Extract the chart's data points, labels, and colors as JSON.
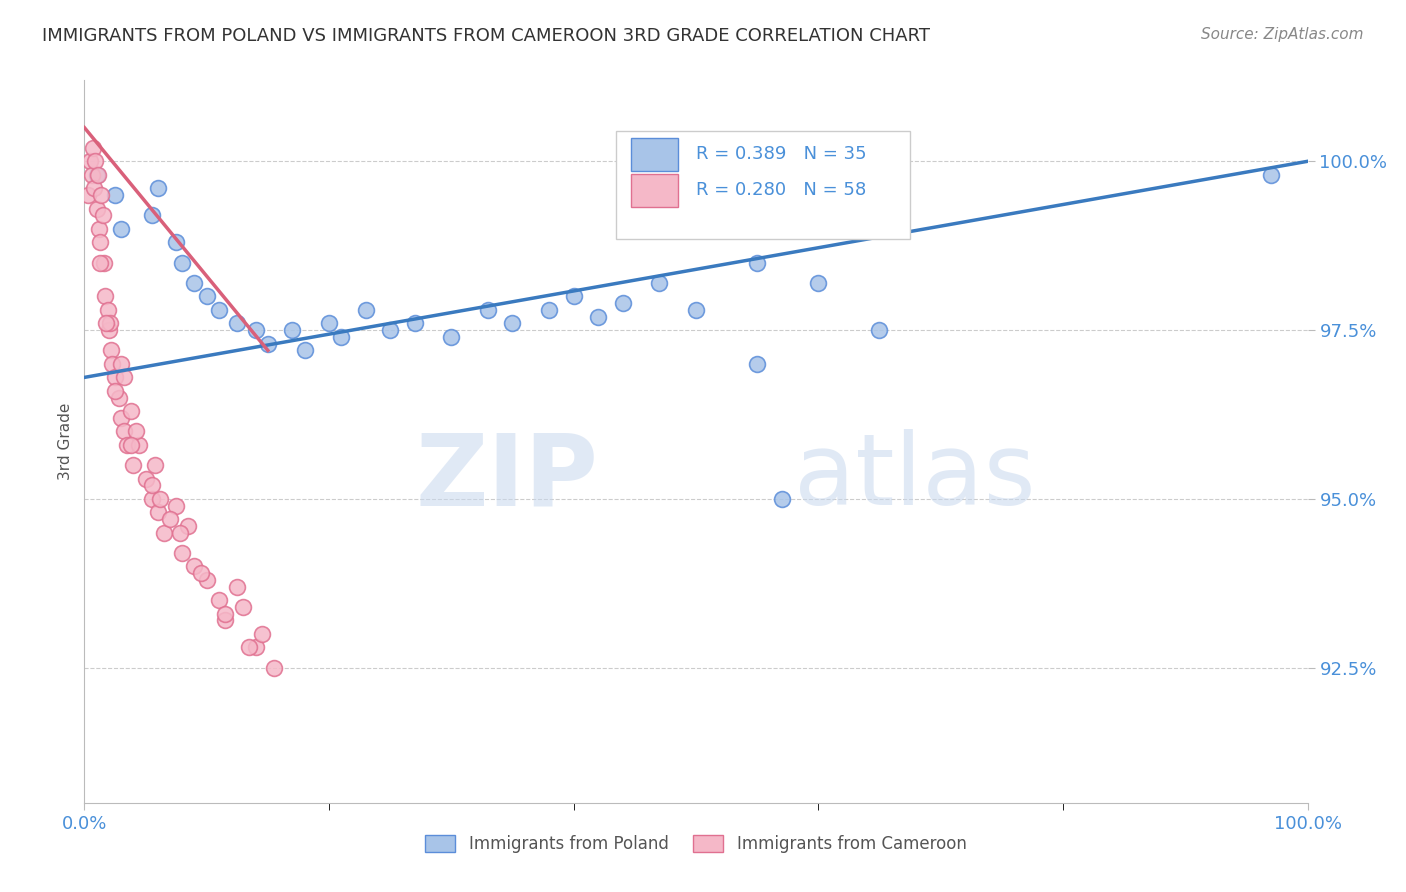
{
  "title": "IMMIGRANTS FROM POLAND VS IMMIGRANTS FROM CAMEROON 3RD GRADE CORRELATION CHART",
  "source": "Source: ZipAtlas.com",
  "ylabel": "3rd Grade",
  "y_tick_values": [
    92.5,
    95.0,
    97.5,
    100.0
  ],
  "xlim": [
    0.0,
    100.0
  ],
  "ylim": [
    90.5,
    101.2
  ],
  "legend_r_poland": "R = 0.389",
  "legend_n_poland": "N = 35",
  "legend_r_cameroon": "R = 0.280",
  "legend_n_cameroon": "N = 58",
  "color_poland_fill": "#a8c4e8",
  "color_poland_edge": "#5b8dd9",
  "color_cameroon_fill": "#f5b8c8",
  "color_cameroon_edge": "#e07090",
  "color_poland_line": "#3a7abf",
  "color_cameroon_line": "#d9607a",
  "color_axis_labels": "#4a90d9",
  "color_title": "#333333",
  "color_source": "#888888",
  "color_grid": "#cccccc",
  "watermark_zip": "ZIP",
  "watermark_atlas": "atlas",
  "poland_x": [
    1.0,
    2.5,
    3.0,
    5.5,
    6.0,
    7.5,
    8.0,
    9.0,
    10.0,
    11.0,
    12.5,
    14.0,
    15.0,
    17.0,
    18.0,
    20.0,
    21.0,
    23.0,
    25.0,
    27.0,
    30.0,
    33.0,
    35.0,
    38.0,
    40.0,
    42.0,
    44.0,
    47.0,
    50.0,
    55.0,
    60.0,
    65.0,
    97.0,
    57.0,
    55.0
  ],
  "poland_y": [
    99.8,
    99.5,
    99.0,
    99.2,
    99.6,
    98.8,
    98.5,
    98.2,
    98.0,
    97.8,
    97.6,
    97.5,
    97.3,
    97.5,
    97.2,
    97.6,
    97.4,
    97.8,
    97.5,
    97.6,
    97.4,
    97.8,
    97.6,
    97.8,
    98.0,
    97.7,
    97.9,
    98.2,
    97.8,
    98.5,
    98.2,
    97.5,
    99.8,
    95.0,
    97.0
  ],
  "cameroon_x": [
    0.3,
    0.5,
    0.6,
    0.7,
    0.8,
    0.9,
    1.0,
    1.1,
    1.2,
    1.3,
    1.4,
    1.5,
    1.6,
    1.7,
    1.9,
    2.0,
    2.1,
    2.2,
    2.3,
    2.5,
    2.8,
    3.0,
    3.2,
    3.5,
    3.8,
    4.0,
    4.5,
    5.0,
    5.5,
    6.0,
    6.5,
    7.5,
    8.0,
    8.5,
    9.0,
    10.0,
    11.0,
    11.5,
    12.5,
    13.0,
    14.0,
    14.5,
    15.5,
    3.0,
    3.2,
    4.2,
    5.8,
    6.2,
    7.8,
    1.3,
    1.8,
    2.5,
    3.8,
    5.5,
    7.0,
    9.5,
    11.5,
    13.5
  ],
  "cameroon_y": [
    99.5,
    100.0,
    99.8,
    100.2,
    99.6,
    100.0,
    99.3,
    99.8,
    99.0,
    98.8,
    99.5,
    99.2,
    98.5,
    98.0,
    97.8,
    97.5,
    97.6,
    97.2,
    97.0,
    96.8,
    96.5,
    96.2,
    96.0,
    95.8,
    96.3,
    95.5,
    95.8,
    95.3,
    95.0,
    94.8,
    94.5,
    94.9,
    94.2,
    94.6,
    94.0,
    93.8,
    93.5,
    93.2,
    93.7,
    93.4,
    92.8,
    93.0,
    92.5,
    97.0,
    96.8,
    96.0,
    95.5,
    95.0,
    94.5,
    98.5,
    97.6,
    96.6,
    95.8,
    95.2,
    94.7,
    93.9,
    93.3,
    92.8
  ],
  "poland_line_x0": 0.0,
  "poland_line_x1": 100.0,
  "poland_line_y0": 96.8,
  "poland_line_y1": 100.0,
  "cameroon_line_x0": 0.0,
  "cameroon_line_x1": 15.0,
  "cameroon_line_y0": 100.5,
  "cameroon_line_y1": 97.2
}
